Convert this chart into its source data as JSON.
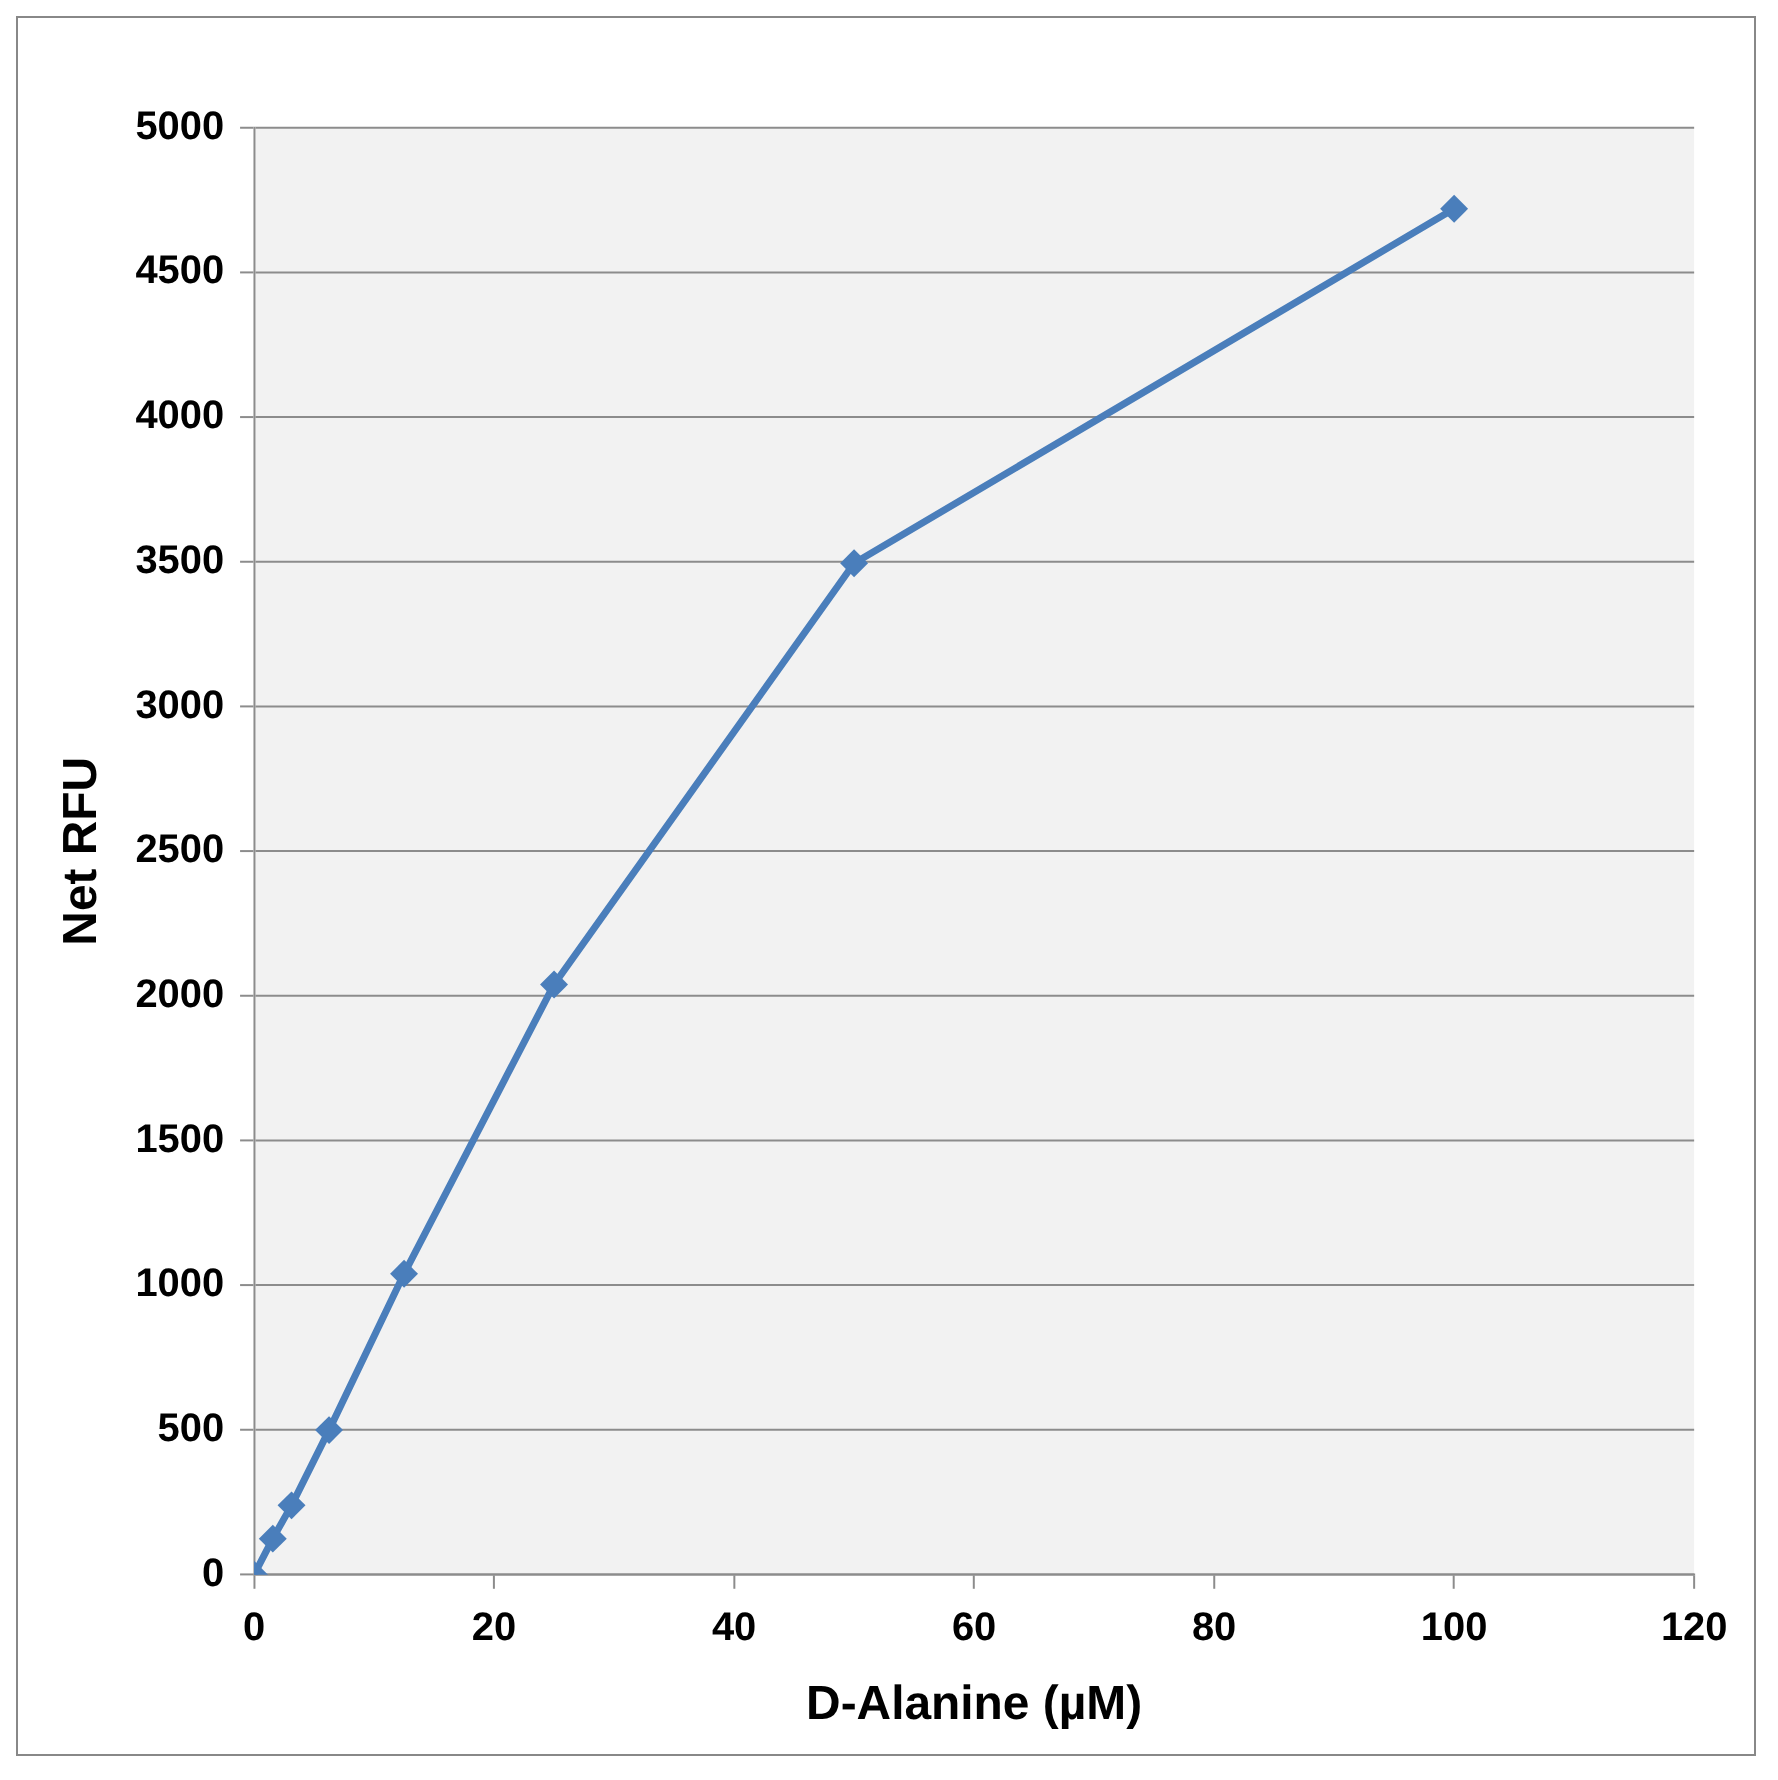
{
  "chart_data": {
    "type": "line",
    "xlabel": "D-Alanine (µM)",
    "ylabel": "Net RFU",
    "x": [
      0,
      1.5625,
      3.125,
      6.25,
      12.5,
      25,
      50,
      100
    ],
    "series": [
      {
        "color": "#4a7ebb",
        "values": [
          0,
          125,
          240,
          500,
          1040,
          2040,
          3495,
          4720
        ]
      }
    ],
    "xlim": [
      0,
      120
    ],
    "xticks": [
      0,
      20,
      40,
      60,
      80,
      100,
      120
    ],
    "ylim": [
      0,
      5000
    ],
    "yticks": [
      0,
      500,
      1000,
      1500,
      2000,
      2500,
      3000,
      3500,
      4000,
      4500,
      5000
    ],
    "grid": "y",
    "legend": false,
    "marker": "diamond",
    "line_style": "solid"
  }
}
